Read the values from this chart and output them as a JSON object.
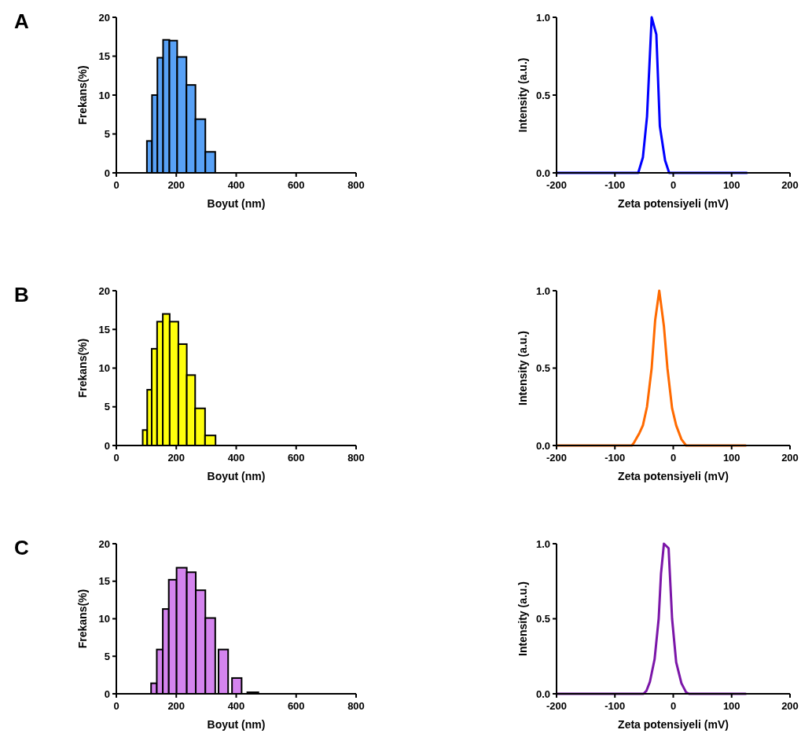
{
  "chart_data": [
    {
      "type": "histogram",
      "annotations": [
        "A"
      ],
      "xlabel": "Boyut (nm)",
      "ylabel": "Frekans(%)",
      "color": "#4f9cf5",
      "bins": [
        102,
        119,
        137,
        156,
        177,
        203,
        234,
        264,
        297,
        330
      ],
      "values": [
        4.1,
        10.0,
        14.8,
        17.1,
        17.0,
        14.9,
        11.3,
        6.9,
        2.7
      ],
      "xlim": [
        0,
        800
      ],
      "xticks": [
        0,
        200,
        400,
        600,
        800
      ],
      "ylim": [
        0,
        20
      ],
      "yticks": [
        0,
        5,
        10,
        15,
        20
      ]
    },
    {
      "type": "line",
      "xlabel": "Zeta potensiyeli (mV)",
      "ylabel": "Intensity (a.u.)",
      "x": [
        -200,
        -60,
        -52,
        -45,
        -37,
        -29,
        -23,
        -14,
        -7,
        126
      ],
      "series": [
        {
          "color": "#0000ff",
          "values": [
            0,
            0,
            0.1,
            0.36,
            1.0,
            0.89,
            0.3,
            0.08,
            0,
            0
          ]
        }
      ],
      "xlim": [
        -200,
        200
      ],
      "xticks": [
        -200,
        -100,
        0,
        100,
        200
      ],
      "ylim": [
        0,
        1
      ],
      "yticks": [
        {
          "value": 0,
          "label": "0.0"
        },
        {
          "value": 0.5,
          "label": "0.5"
        },
        {
          "value": 1,
          "label": "1.0"
        }
      ]
    },
    {
      "type": "histogram",
      "annotations": [
        "B"
      ],
      "xlabel": "Boyut (nm)",
      "ylabel": "Frekans(%)",
      "color": "#ffff00",
      "bins": [
        88,
        103,
        118,
        136,
        155,
        178,
        207,
        235,
        263,
        296,
        331
      ],
      "values": [
        2.0,
        7.2,
        12.5,
        16.0,
        17.0,
        16.0,
        13.1,
        9.1,
        4.8,
        1.3
      ],
      "xlim": [
        0,
        800
      ],
      "xticks": [
        0,
        200,
        400,
        600,
        800
      ],
      "ylim": [
        0,
        20
      ],
      "yticks": [
        0,
        5,
        10,
        15,
        20
      ]
    },
    {
      "type": "line",
      "xlabel": "Zeta potensiyeli (mV)",
      "ylabel": "Intensity (a.u.)",
      "x": [
        -200,
        -71,
        -67,
        -58,
        -52,
        -45,
        -37,
        -31,
        -24,
        -16,
        -10,
        -2,
        5,
        14,
        22,
        124
      ],
      "series": [
        {
          "color": "#ff6a00",
          "values": [
            0,
            0,
            0.02,
            0.08,
            0.13,
            0.25,
            0.5,
            0.81,
            1.0,
            0.77,
            0.5,
            0.24,
            0.13,
            0.04,
            0,
            0
          ]
        }
      ],
      "xlim": [
        -200,
        200
      ],
      "xticks": [
        -200,
        -100,
        0,
        100,
        200
      ],
      "ylim": [
        0,
        1
      ],
      "yticks": [
        {
          "value": 0,
          "label": "0.0"
        },
        {
          "value": 0.5,
          "label": "0.5"
        },
        {
          "value": 1,
          "label": "1.0"
        }
      ]
    },
    {
      "type": "histogram",
      "annotations": [
        "C"
      ],
      "xlabel": "Boyut (nm)",
      "ylabel": "Frekans(%)",
      "color": "#d27ded",
      "bins": [
        116,
        135,
        155,
        175,
        201,
        235,
        265,
        297,
        330,
        341,
        373,
        386,
        418,
        437,
        474
      ],
      "values": [
        1.4,
        5.9,
        11.3,
        15.2,
        16.8,
        16.2,
        13.8,
        10.1,
        0,
        5.9,
        0,
        2.1,
        0,
        0.2
      ],
      "xlim": [
        0,
        800
      ],
      "xticks": [
        0,
        200,
        400,
        600,
        800
      ],
      "ylim": [
        0,
        20
      ],
      "yticks": [
        0,
        5,
        10,
        15,
        20
      ]
    },
    {
      "type": "line",
      "xlabel": "Zeta potensiyeli (mV)",
      "ylabel": "Intensity (a.u.)",
      "x": [
        -200,
        -51,
        -46,
        -40,
        -32,
        -25,
        -21,
        -16,
        -8,
        -2,
        5,
        14,
        22,
        27,
        124
      ],
      "series": [
        {
          "color": "#7b16a8",
          "values": [
            0,
            0,
            0.02,
            0.08,
            0.23,
            0.5,
            0.8,
            1.0,
            0.97,
            0.5,
            0.21,
            0.07,
            0.01,
            0,
            0
          ]
        }
      ],
      "xlim": [
        -200,
        200
      ],
      "xticks": [
        -200,
        -100,
        0,
        100,
        200
      ],
      "ylim": [
        0,
        1
      ],
      "yticks": [
        {
          "value": 0,
          "label": "0.0"
        },
        {
          "value": 0.5,
          "label": "0.5"
        },
        {
          "value": 1,
          "label": "1.0"
        }
      ]
    }
  ]
}
